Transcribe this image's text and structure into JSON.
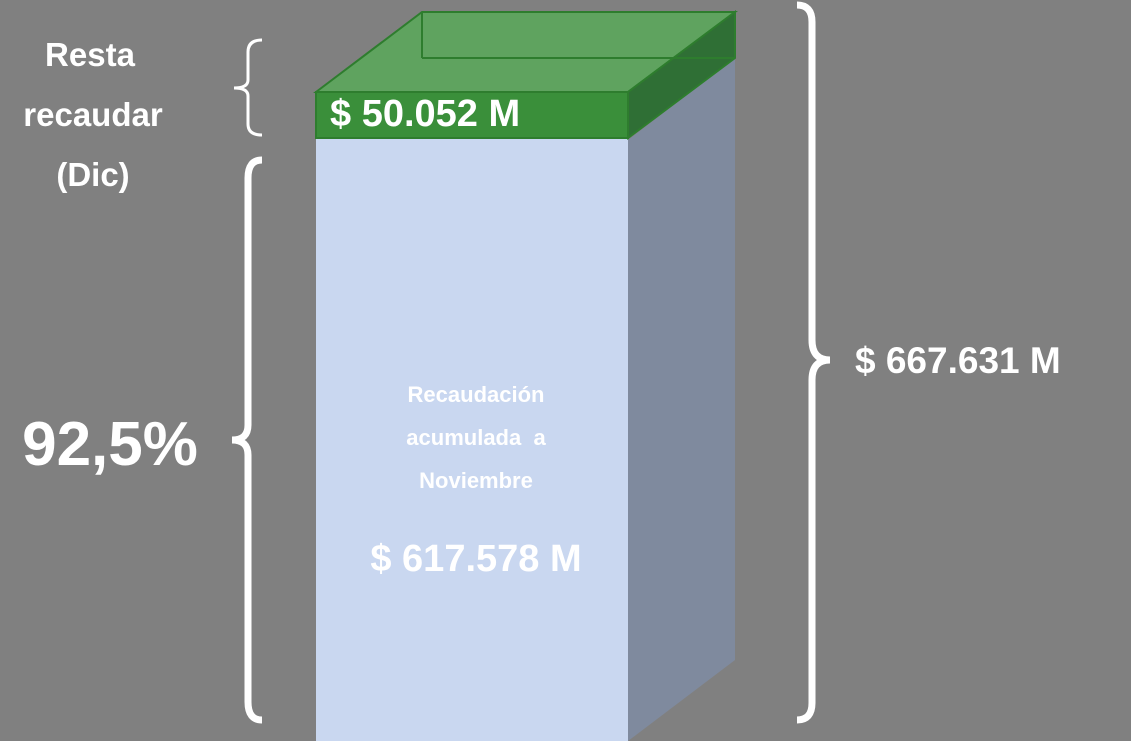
{
  "top_segment": {
    "label_lines": [
      "Resta",
      "recaudar",
      "(Dic)"
    ],
    "value_text": "$ 50.052 M"
  },
  "bottom_segment": {
    "label_lines": [
      "Recaudación",
      "acumulada  a",
      "Noviembre"
    ],
    "value_text": "$ 617.578 M",
    "share_text": "92,5%"
  },
  "total_text": "$ 667.631 M"
}
